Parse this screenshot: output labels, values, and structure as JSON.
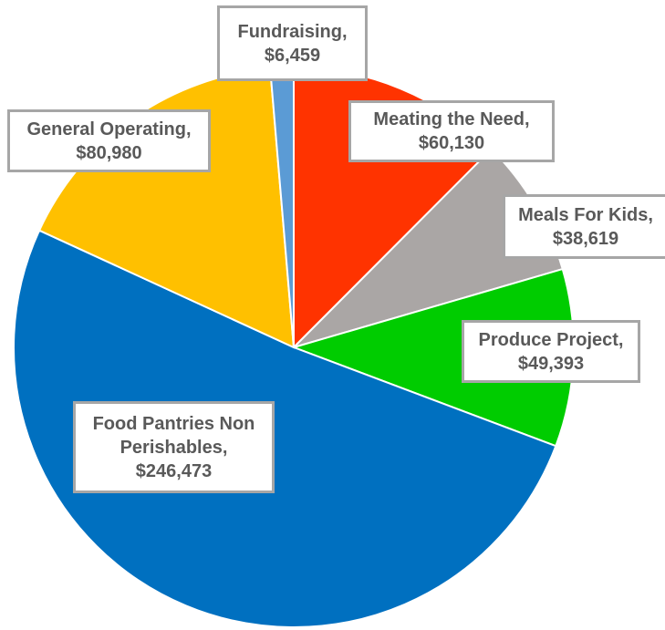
{
  "chart_data": {
    "type": "pie",
    "categories": [
      "Meating the Need,",
      "Meals For Kids,",
      "Produce Project,",
      "Food Pantries Non Perishables,",
      "General Operating,",
      "Fundraising,"
    ],
    "values": [
      60130,
      38619,
      49393,
      246473,
      80980,
      6459
    ],
    "value_labels": [
      "$60,130",
      "$38,619",
      "$49,393",
      "$246,473",
      "$80,980",
      "$6,459"
    ],
    "colors": [
      "#ff3300",
      "#aaa6a5",
      "#00cc00",
      "#0070c0",
      "#ffc000",
      "#5b9bd5"
    ]
  }
}
